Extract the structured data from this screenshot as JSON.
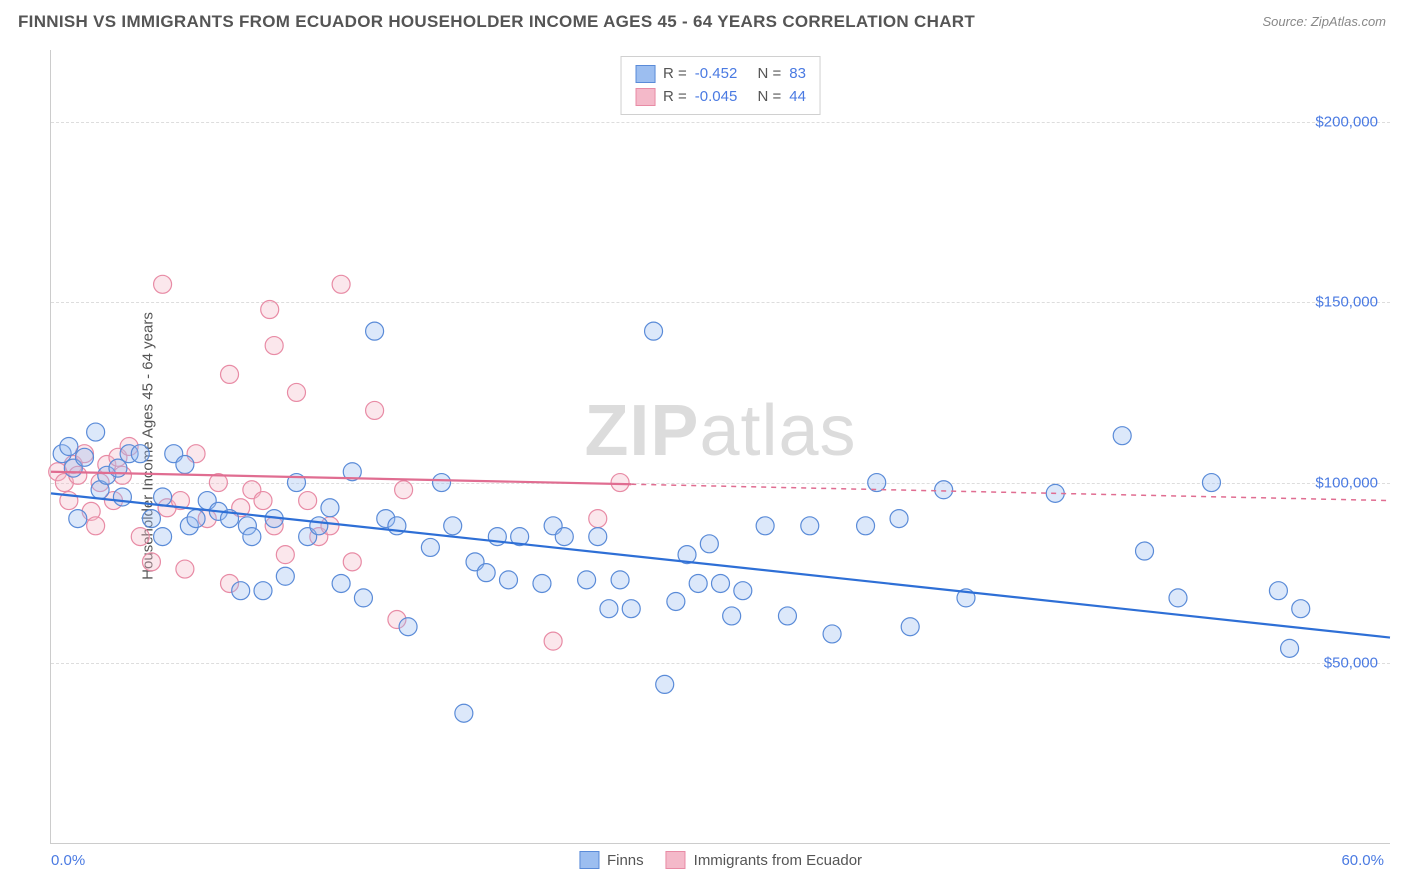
{
  "title": "FINNISH VS IMMIGRANTS FROM ECUADOR HOUSEHOLDER INCOME AGES 45 - 64 YEARS CORRELATION CHART",
  "source": "Source: ZipAtlas.com",
  "watermark_bold": "ZIP",
  "watermark_rest": "atlas",
  "ylabel": "Householder Income Ages 45 - 64 years",
  "chart": {
    "type": "scatter",
    "background_color": "#ffffff",
    "grid_color": "#dddddd",
    "axis_color": "#cccccc",
    "label_color": "#555555",
    "value_color": "#4a7ae2",
    "title_fontsize": 17,
    "label_fontsize": 15,
    "xlim": [
      0,
      60
    ],
    "ylim": [
      0,
      220000
    ],
    "xtick_min_label": "0.0%",
    "xtick_max_label": "60.0%",
    "yticks": [
      {
        "v": 50000,
        "label": "$50,000"
      },
      {
        "v": 100000,
        "label": "$100,000"
      },
      {
        "v": 150000,
        "label": "$150,000"
      },
      {
        "v": 200000,
        "label": "$200,000"
      }
    ],
    "series": [
      {
        "key": "finns",
        "label": "Finns",
        "fill": "#9cbef0",
        "stroke": "#5a8bd8",
        "line_color": "#2e6fd6",
        "R": "-0.452",
        "N": "83",
        "marker_r": 9,
        "regression": {
          "x1": 0,
          "y1": 97000,
          "x2": 60,
          "y2": 57000,
          "solid_until_x": 60
        },
        "points": [
          [
            0.5,
            108000
          ],
          [
            0.8,
            110000
          ],
          [
            1.0,
            104000
          ],
          [
            1.2,
            90000
          ],
          [
            1.5,
            107000
          ],
          [
            2.0,
            114000
          ],
          [
            2.2,
            98000
          ],
          [
            2.5,
            102000
          ],
          [
            3.0,
            104000
          ],
          [
            3.2,
            96000
          ],
          [
            3.5,
            108000
          ],
          [
            4.0,
            108000
          ],
          [
            4.5,
            90000
          ],
          [
            5.0,
            96000
          ],
          [
            5.0,
            85000
          ],
          [
            5.5,
            108000
          ],
          [
            6.0,
            105000
          ],
          [
            6.2,
            88000
          ],
          [
            6.5,
            90000
          ],
          [
            7.0,
            95000
          ],
          [
            7.5,
            92000
          ],
          [
            8.0,
            90000
          ],
          [
            8.5,
            70000
          ],
          [
            8.8,
            88000
          ],
          [
            9.0,
            85000
          ],
          [
            9.5,
            70000
          ],
          [
            10.0,
            90000
          ],
          [
            10.5,
            74000
          ],
          [
            11.0,
            100000
          ],
          [
            11.5,
            85000
          ],
          [
            12.0,
            88000
          ],
          [
            12.5,
            93000
          ],
          [
            13.0,
            72000
          ],
          [
            13.5,
            103000
          ],
          [
            14.0,
            68000
          ],
          [
            14.5,
            142000
          ],
          [
            15.0,
            90000
          ],
          [
            15.5,
            88000
          ],
          [
            16.0,
            60000
          ],
          [
            17.0,
            82000
          ],
          [
            17.5,
            100000
          ],
          [
            18.0,
            88000
          ],
          [
            18.5,
            36000
          ],
          [
            19.0,
            78000
          ],
          [
            19.5,
            75000
          ],
          [
            20.0,
            85000
          ],
          [
            20.5,
            73000
          ],
          [
            21.0,
            85000
          ],
          [
            22.0,
            72000
          ],
          [
            22.5,
            88000
          ],
          [
            23.0,
            85000
          ],
          [
            24.0,
            73000
          ],
          [
            24.5,
            85000
          ],
          [
            25.0,
            65000
          ],
          [
            25.5,
            73000
          ],
          [
            26.0,
            65000
          ],
          [
            27.0,
            142000
          ],
          [
            27.5,
            44000
          ],
          [
            28.0,
            67000
          ],
          [
            28.5,
            80000
          ],
          [
            29.0,
            72000
          ],
          [
            29.5,
            83000
          ],
          [
            30.0,
            72000
          ],
          [
            30.5,
            63000
          ],
          [
            31.0,
            70000
          ],
          [
            32.0,
            88000
          ],
          [
            33.0,
            63000
          ],
          [
            34.0,
            88000
          ],
          [
            35.0,
            58000
          ],
          [
            36.5,
            88000
          ],
          [
            37.0,
            100000
          ],
          [
            38.0,
            90000
          ],
          [
            38.5,
            60000
          ],
          [
            40.0,
            98000
          ],
          [
            41.0,
            68000
          ],
          [
            45.0,
            97000
          ],
          [
            48.0,
            113000
          ],
          [
            50.5,
            68000
          ],
          [
            52.0,
            100000
          ],
          [
            55.0,
            70000
          ],
          [
            55.5,
            54000
          ],
          [
            56.0,
            65000
          ],
          [
            49.0,
            81000
          ]
        ]
      },
      {
        "key": "ecuador",
        "label": "Immigrants from Ecuador",
        "fill": "#f4b9c9",
        "stroke": "#e88ba5",
        "line_color": "#e06d91",
        "R": "-0.045",
        "N": "44",
        "marker_r": 9,
        "regression": {
          "x1": 0,
          "y1": 103000,
          "x2": 60,
          "y2": 95000,
          "solid_until_x": 26
        },
        "points": [
          [
            0.3,
            103000
          ],
          [
            0.6,
            100000
          ],
          [
            0.8,
            95000
          ],
          [
            1.0,
            105000
          ],
          [
            1.2,
            102000
          ],
          [
            1.5,
            108000
          ],
          [
            1.8,
            92000
          ],
          [
            2.0,
            88000
          ],
          [
            2.2,
            100000
          ],
          [
            2.5,
            105000
          ],
          [
            2.8,
            95000
          ],
          [
            3.0,
            107000
          ],
          [
            3.2,
            102000
          ],
          [
            3.5,
            110000
          ],
          [
            4.0,
            85000
          ],
          [
            4.5,
            78000
          ],
          [
            5.0,
            155000
          ],
          [
            5.2,
            93000
          ],
          [
            5.8,
            95000
          ],
          [
            6.0,
            76000
          ],
          [
            6.5,
            108000
          ],
          [
            7.0,
            90000
          ],
          [
            7.5,
            100000
          ],
          [
            8.0,
            130000
          ],
          [
            8.0,
            72000
          ],
          [
            8.5,
            93000
          ],
          [
            9.0,
            98000
          ],
          [
            9.5,
            95000
          ],
          [
            9.8,
            148000
          ],
          [
            10.0,
            88000
          ],
          [
            10.0,
            138000
          ],
          [
            10.5,
            80000
          ],
          [
            11.0,
            125000
          ],
          [
            11.5,
            95000
          ],
          [
            12.0,
            85000
          ],
          [
            12.5,
            88000
          ],
          [
            13.0,
            155000
          ],
          [
            13.5,
            78000
          ],
          [
            14.5,
            120000
          ],
          [
            15.8,
            98000
          ],
          [
            15.5,
            62000
          ],
          [
            22.5,
            56000
          ],
          [
            24.5,
            90000
          ],
          [
            25.5,
            100000
          ]
        ]
      }
    ],
    "legend_top_labels": {
      "R": "R =",
      "N": "N ="
    },
    "legend_bottom": true
  }
}
